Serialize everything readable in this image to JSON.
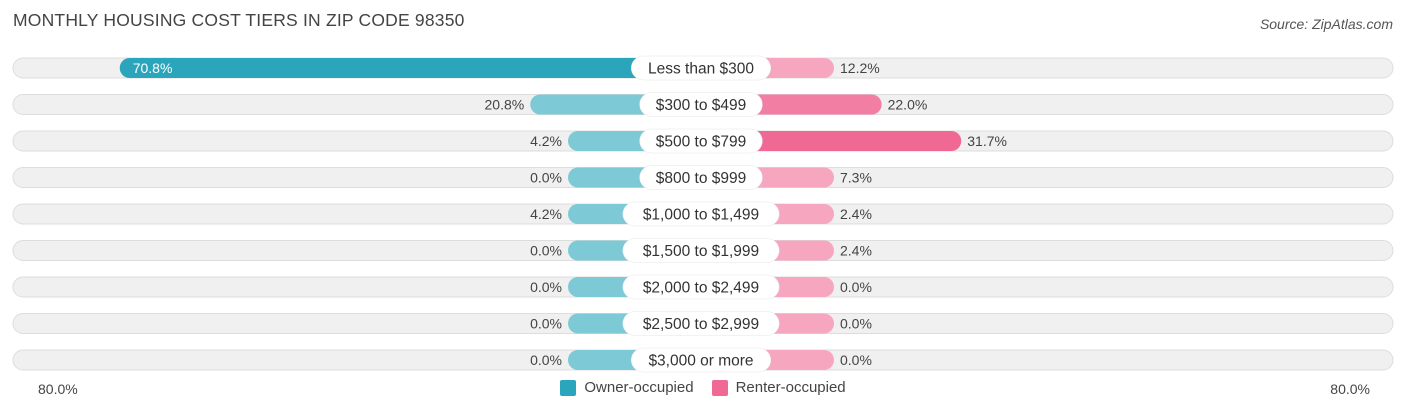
{
  "title": "MONTHLY HOUSING COST TIERS IN ZIP CODE 98350",
  "source": "Source: ZipAtlas.com",
  "colors": {
    "owner_strong": "#2ba5bb",
    "owner_light": "#7dcad6",
    "renter_strong": "#f06894",
    "renter_light": "#f7a6c0",
    "row_background": "#f0f0f0",
    "row_border": "#dddddd"
  },
  "chart_data": {
    "type": "bar",
    "orientation": "horizontal-diverging",
    "categories": [
      "Less than $300",
      "$300 to $499",
      "$500 to $799",
      "$800 to $999",
      "$1,000 to $1,499",
      "$1,500 to $1,999",
      "$2,000 to $2,499",
      "$2,500 to $2,999",
      "$3,000 or more"
    ],
    "series": [
      {
        "name": "Owner-occupied",
        "values": [
          70.8,
          20.8,
          4.2,
          0.0,
          4.2,
          0.0,
          0.0,
          0.0,
          0.0
        ],
        "labels": [
          "70.8%",
          "20.8%",
          "4.2%",
          "0.0%",
          "4.2%",
          "0.0%",
          "0.0%",
          "0.0%",
          "0.0%"
        ]
      },
      {
        "name": "Renter-occupied",
        "values": [
          12.2,
          22.0,
          31.7,
          7.3,
          2.4,
          2.4,
          0.0,
          0.0,
          0.0
        ],
        "labels": [
          "12.2%",
          "22.0%",
          "31.7%",
          "7.3%",
          "2.4%",
          "2.4%",
          "0.0%",
          "0.0%",
          "0.0%"
        ]
      }
    ],
    "axis": {
      "left_label": "80.0%",
      "right_label": "80.0%",
      "max": 80.0
    },
    "legend_placement": "bottom-center"
  }
}
